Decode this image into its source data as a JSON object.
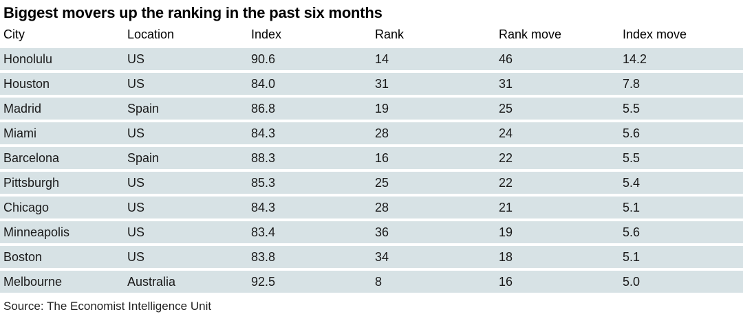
{
  "title": "Biggest movers up the ranking in the past six months",
  "source": "Source: The Economist Intelligence Unit",
  "colors": {
    "page_bg": "#ffffff",
    "row_bg": "#d7e2e5",
    "row_gap": "#ffffff",
    "title_text": "#000000",
    "body_text": "#1a1a1a"
  },
  "table": {
    "columns": [
      "City",
      "Location",
      "Index",
      "Rank",
      "Rank move",
      "Index move"
    ],
    "rows": [
      [
        "Honolulu",
        "US",
        "90.6",
        "14",
        "46",
        "14.2"
      ],
      [
        "Houston",
        "US",
        "84.0",
        "31",
        "31",
        "7.8"
      ],
      [
        "Madrid",
        "Spain",
        "86.8",
        "19",
        "25",
        "5.5"
      ],
      [
        "Miami",
        "US",
        "84.3",
        "28",
        "24",
        "5.6"
      ],
      [
        "Barcelona",
        "Spain",
        "88.3",
        "16",
        "22",
        "5.5"
      ],
      [
        "Pittsburgh",
        "US",
        "85.3",
        "25",
        "22",
        "5.4"
      ],
      [
        "Chicago",
        "US",
        "84.3",
        "28",
        "21",
        "5.1"
      ],
      [
        "Minneapolis",
        "US",
        "83.4",
        "36",
        "19",
        "5.6"
      ],
      [
        "Boston",
        "US",
        "83.8",
        "34",
        "18",
        "5.1"
      ],
      [
        "Melbourne",
        "Australia",
        "92.5",
        "8",
        "16",
        "5.0"
      ]
    ]
  },
  "chart_data": {
    "type": "table",
    "title": "Biggest movers up the ranking in the past six months",
    "columns": [
      "City",
      "Location",
      "Index",
      "Rank",
      "Rank move",
      "Index move"
    ],
    "rows": [
      {
        "city": "Honolulu",
        "location": "US",
        "index": 90.6,
        "rank": 14,
        "rank_move": 46,
        "index_move": 14.2
      },
      {
        "city": "Houston",
        "location": "US",
        "index": 84.0,
        "rank": 31,
        "rank_move": 31,
        "index_move": 7.8
      },
      {
        "city": "Madrid",
        "location": "Spain",
        "index": 86.8,
        "rank": 19,
        "rank_move": 25,
        "index_move": 5.5
      },
      {
        "city": "Miami",
        "location": "US",
        "index": 84.3,
        "rank": 28,
        "rank_move": 24,
        "index_move": 5.6
      },
      {
        "city": "Barcelona",
        "location": "Spain",
        "index": 88.3,
        "rank": 16,
        "rank_move": 22,
        "index_move": 5.5
      },
      {
        "city": "Pittsburgh",
        "location": "US",
        "index": 85.3,
        "rank": 25,
        "rank_move": 22,
        "index_move": 5.4
      },
      {
        "city": "Chicago",
        "location": "US",
        "index": 84.3,
        "rank": 28,
        "rank_move": 21,
        "index_move": 5.1
      },
      {
        "city": "Minneapolis",
        "location": "US",
        "index": 83.4,
        "rank": 36,
        "rank_move": 19,
        "index_move": 5.6
      },
      {
        "city": "Boston",
        "location": "US",
        "index": 83.8,
        "rank": 34,
        "rank_move": 18,
        "index_move": 5.1
      },
      {
        "city": "Melbourne",
        "location": "Australia",
        "index": 92.5,
        "rank": 8,
        "rank_move": 16,
        "index_move": 5.0
      }
    ],
    "source": "Source: The Economist Intelligence Unit",
    "layout": "6 equal-width left-aligned columns; light blue-grey row bands separated by white gaps; no vertical rules"
  }
}
